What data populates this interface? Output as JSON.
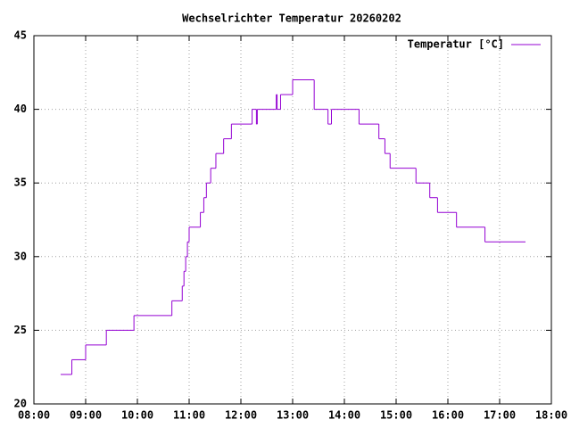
{
  "chart_data": {
    "type": "step",
    "title": "Wechselrichter Temperatur 20260202",
    "x": [
      "08:31",
      "08:44",
      "09:00",
      "09:24",
      "09:56",
      "10:40",
      "10:52",
      "10:54",
      "10:56",
      "10:58",
      "11:00",
      "11:13",
      "11:17",
      "11:20",
      "11:25",
      "11:31",
      "11:40",
      "11:49",
      "12:13",
      "12:18",
      "12:19",
      "12:41",
      "12:42",
      "12:46",
      "13:00",
      "13:25",
      "13:41",
      "13:45",
      "14:17",
      "14:40",
      "14:47",
      "14:53",
      "15:23",
      "15:39",
      "15:48",
      "16:10",
      "16:43",
      "17:30"
    ],
    "series": [
      {
        "name": "Temperatur [°C]",
        "color": "#9400d3",
        "values": [
          22,
          23,
          24,
          25,
          26,
          27,
          28,
          29,
          30,
          31,
          32,
          33,
          34,
          35,
          36,
          37,
          38,
          39,
          40,
          39,
          40,
          41,
          40,
          41,
          42,
          40,
          39,
          40,
          39,
          38,
          37,
          36,
          35,
          34,
          33,
          32,
          31,
          31
        ]
      }
    ],
    "xlim": [
      "08:00",
      "18:00"
    ],
    "xticks": [
      "08:00",
      "09:00",
      "10:00",
      "11:00",
      "12:00",
      "13:00",
      "14:00",
      "15:00",
      "16:00",
      "17:00",
      "18:00"
    ],
    "ylim": [
      20,
      45
    ],
    "yticks": [
      20,
      25,
      30,
      35,
      40,
      45
    ],
    "grid": true,
    "legend": "top-right"
  }
}
